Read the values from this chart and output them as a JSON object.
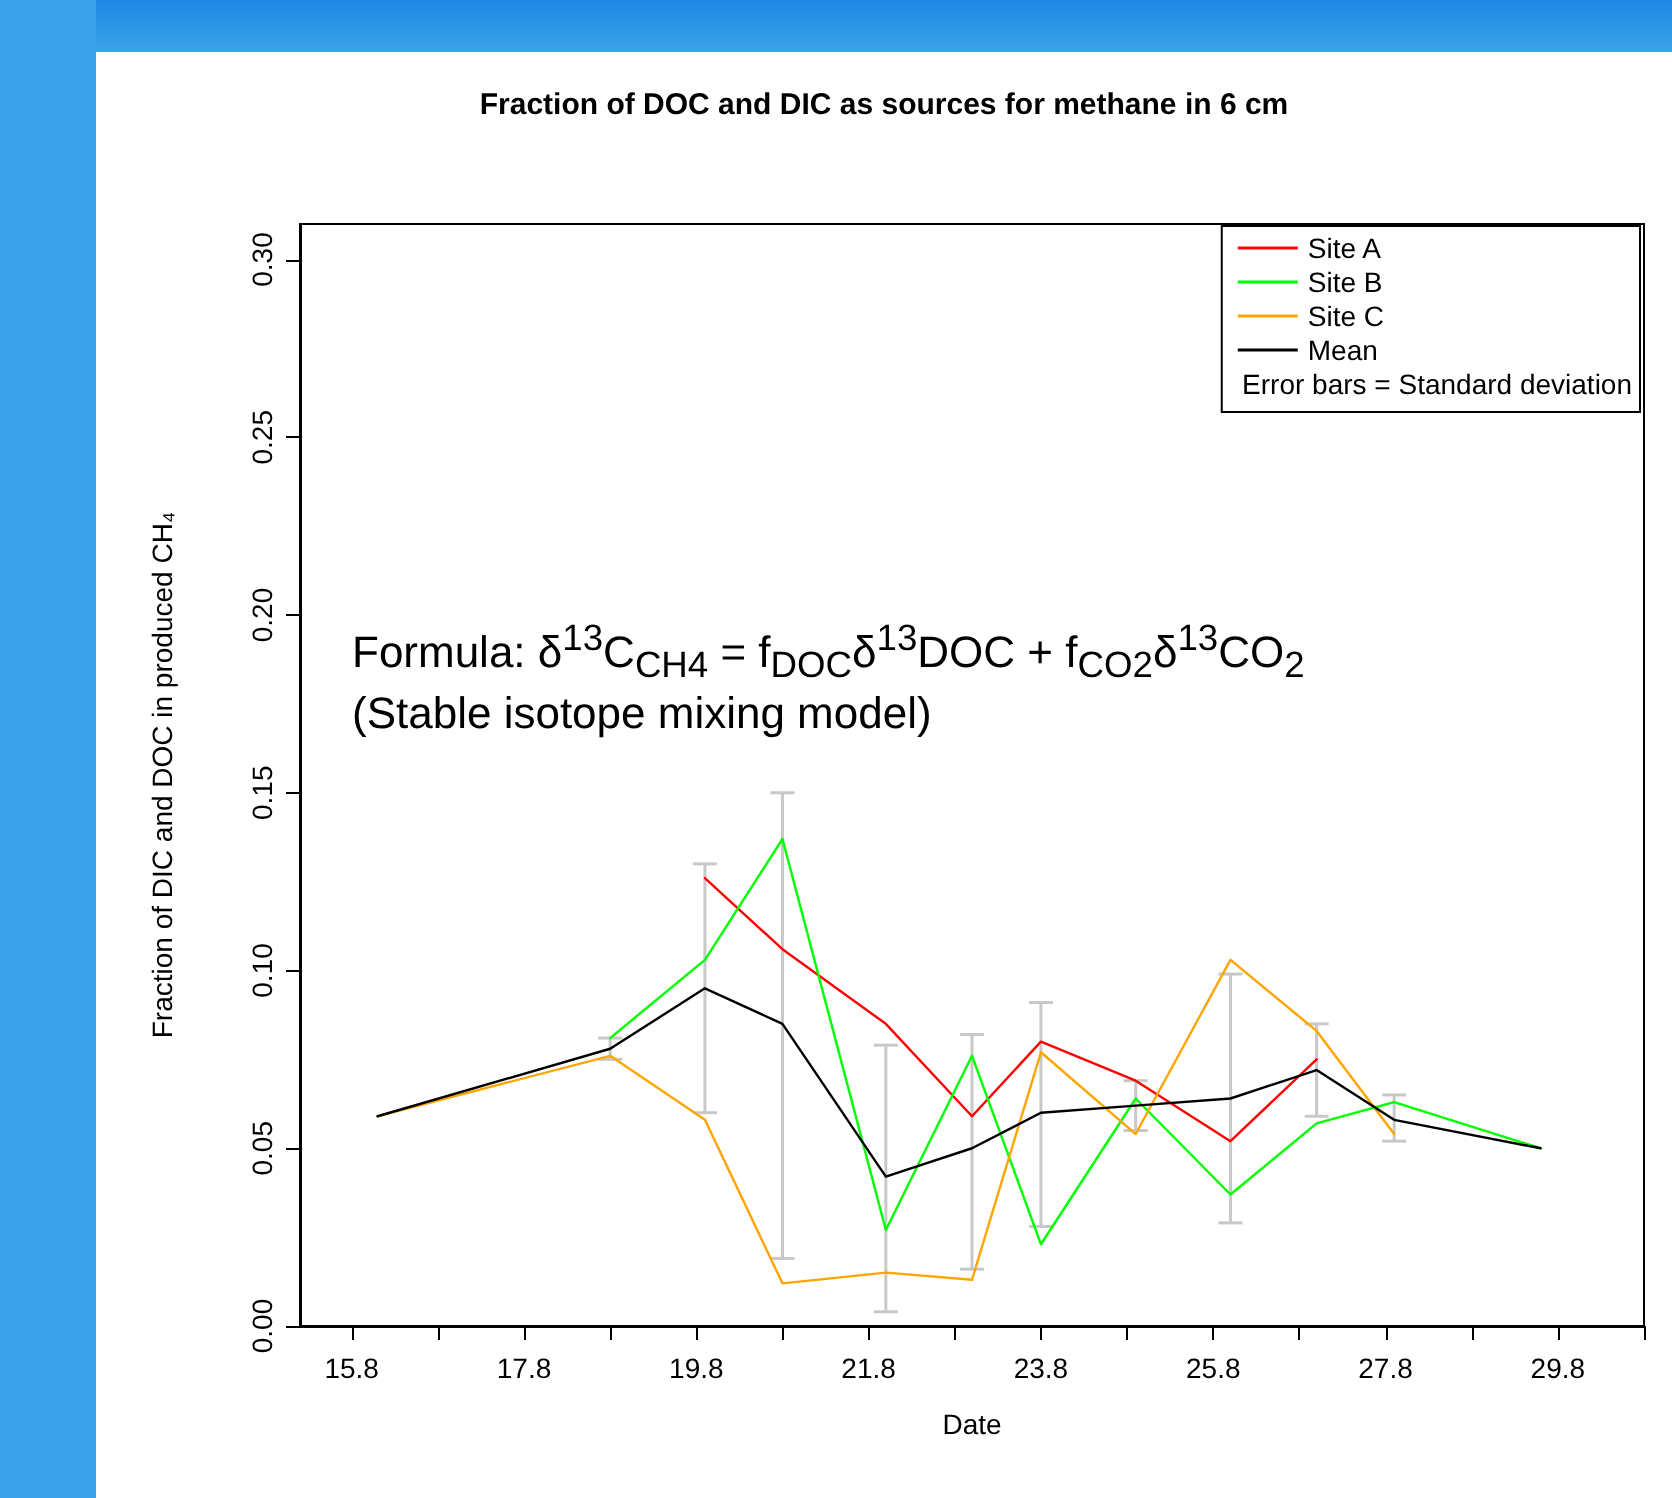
{
  "chart_data": {
    "type": "line",
    "title": "Fraction of DOC and DIC as sources for methane in 6 cm",
    "xlabel": "Date",
    "ylabel": "Fraction of DIC and DOC in produced CH₄",
    "annotations": [
      "Formula: δ$^{13}$C$_{CH4}$ = f$_{DOC}$δ$^{13}$DOC + f$_{CO2}$δ$^{13}$CO$_{2}$",
      "(Stable isotope mixing model)",
      "Error bars = Standard deviation"
    ],
    "series": [
      {
        "name": "Site A",
        "color": "#ff0000",
        "x": [
          19.9,
          20.8,
          22.0,
          23.0,
          23.8,
          24.9,
          26.0,
          27.0
        ],
        "values": [
          0.126,
          0.106,
          0.085,
          0.059,
          0.08,
          0.069,
          0.052,
          0.075
        ]
      },
      {
        "name": "Site B",
        "color": "#00ff00",
        "x": [
          18.8,
          19.9,
          20.8,
          22.0,
          23.0,
          23.8,
          24.9,
          26.0,
          27.0,
          27.9,
          29.6
        ],
        "values": [
          0.081,
          0.103,
          0.137,
          0.027,
          0.076,
          0.023,
          0.064,
          0.037,
          0.057,
          0.063,
          0.05
        ]
      },
      {
        "name": "Site C",
        "color": "#ffa500",
        "x": [
          16.1,
          18.8,
          19.9,
          20.8,
          22.0,
          23.0,
          23.8,
          24.9,
          26.0,
          27.0,
          27.9
        ],
        "values": [
          0.059,
          0.076,
          0.058,
          0.012,
          0.015,
          0.013,
          0.077,
          0.054,
          0.103,
          0.083,
          0.054
        ]
      },
      {
        "name": "Mean",
        "color": "#000000",
        "x": [
          16.1,
          18.8,
          19.9,
          20.8,
          22.0,
          23.0,
          23.8,
          24.9,
          26.0,
          27.0,
          27.9,
          29.6
        ],
        "values": [
          0.059,
          0.078,
          0.095,
          0.085,
          0.042,
          0.05,
          0.06,
          0.062,
          0.064,
          0.072,
          0.058,
          0.05
        ],
        "errors": [
          null,
          [
            0.075,
            0.081
          ],
          [
            0.06,
            0.13
          ],
          [
            0.019,
            0.15
          ],
          [
            0.004,
            0.079
          ],
          [
            0.016,
            0.082
          ],
          [
            0.028,
            0.091
          ],
          [
            0.055,
            0.069
          ],
          [
            0.029,
            0.099
          ],
          [
            0.059,
            0.085
          ],
          [
            0.052,
            0.065
          ],
          null
        ]
      }
    ],
    "xlim": [
      15.2,
      30.8
    ],
    "xticks": [
      15.8,
      {
        "value": 16.8,
        "label": null
      },
      17.8,
      {
        "value": 18.8,
        "label": null
      },
      19.8,
      {
        "value": 20.8,
        "label": null
      },
      21.8,
      {
        "value": 22.8,
        "label": null
      },
      23.8,
      {
        "value": 24.8,
        "label": null
      },
      25.8,
      {
        "value": 26.8,
        "label": null
      },
      27.8,
      {
        "value": 28.8,
        "label": null
      },
      29.8,
      {
        "value": 30.8,
        "label": null
      }
    ],
    "ylim": [
      0,
      0.31
    ],
    "yticks": [
      {
        "value": 0,
        "label": "0.00"
      },
      {
        "value": 0.05,
        "label": "0.05"
      },
      {
        "value": 0.1,
        "label": "0.10"
      },
      {
        "value": 0.15,
        "label": "0.15"
      },
      {
        "value": 0.2,
        "label": "0.20"
      },
      {
        "value": 0.25,
        "label": "0.25"
      },
      {
        "value": 0.3,
        "label": "0.30"
      }
    ],
    "grid": false,
    "legend": "top right",
    "marker": "none",
    "line_style": "solid"
  }
}
